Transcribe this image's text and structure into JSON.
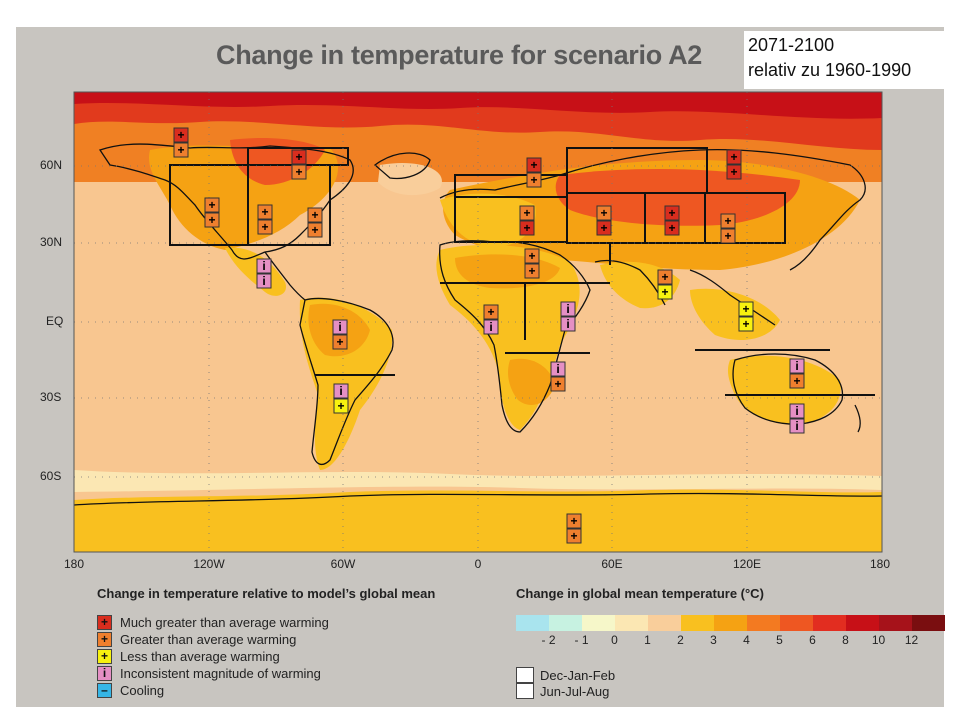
{
  "header": {
    "title": "Change in temperature for scenario A2",
    "period_line1": "2071-2100",
    "period_line2": "relativ zu 1960-1990"
  },
  "axes": {
    "lat_labels": [
      "60N",
      "30N",
      "EQ",
      "30S",
      "60S"
    ],
    "lon_labels": [
      "180",
      "120W",
      "60W",
      "0",
      "60E",
      "120E",
      "180"
    ]
  },
  "legend_symbols": {
    "heading": "Change in temperature relative to model’s global mean",
    "items": [
      {
        "symbol": "+",
        "color": "#d92d1e",
        "label": "Much greater than average warming"
      },
      {
        "symbol": "+",
        "color": "#ef7f2e",
        "label": "Greater than average warming"
      },
      {
        "symbol": "+",
        "color": "#f7f20f",
        "label": "Less than average warming"
      },
      {
        "symbol": "i",
        "color": "#e58fc4",
        "label": "Inconsistent magnitude of warming"
      },
      {
        "symbol": "–",
        "color": "#36b6e6",
        "label": "Cooling"
      }
    ]
  },
  "legend_scale": {
    "heading": "Change in global mean temperature (°C)",
    "colors": [
      "#a9e4ee",
      "#c7f2e1",
      "#f6f7c9",
      "#fbe7b3",
      "#f9ce9b",
      "#f9c01f",
      "#f5a213",
      "#f37a21",
      "#ee5722",
      "#e22d20",
      "#c71017",
      "#a6121a",
      "#7a0e10"
    ],
    "ticks": [
      "- 2",
      "- 1",
      "0",
      "1",
      "2",
      "3",
      "4",
      "5",
      "6",
      "8",
      "10",
      "12"
    ]
  },
  "legend_seasons": {
    "items": [
      {
        "label": "Dec-Jan-Feb"
      },
      {
        "label": "Jun-Jul-Aug"
      }
    ]
  }
}
